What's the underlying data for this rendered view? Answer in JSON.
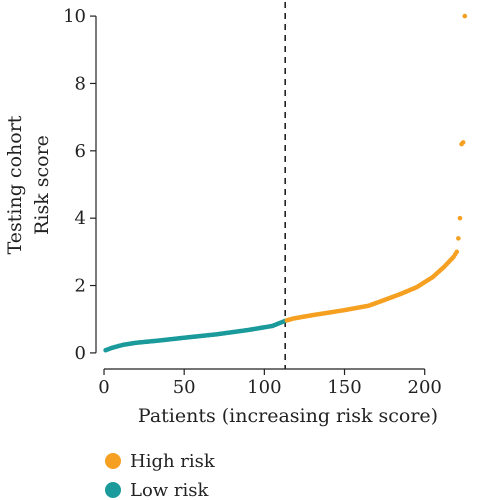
{
  "chart_data": {
    "type": "scatter",
    "ylabel_line1": "Testing cohort",
    "ylabel_line2": "Risk score",
    "xlabel": "Patients (increasing risk score)",
    "xlim": [
      -5,
      232
    ],
    "ylim": [
      -0.3,
      10.3
    ],
    "x_ticks": [
      0,
      50,
      100,
      150,
      200
    ],
    "y_ticks": [
      0,
      2,
      4,
      6,
      8,
      10
    ],
    "cutoff_x": 113,
    "n_patients": 225,
    "series": [
      {
        "name": "High risk",
        "color": "#F5A020"
      },
      {
        "name": "Low risk",
        "color": "#1A9A9A"
      }
    ],
    "curve_anchors": [
      [
        1,
        0.08
      ],
      [
        5,
        0.15
      ],
      [
        12,
        0.24
      ],
      [
        20,
        0.3
      ],
      [
        35,
        0.37
      ],
      [
        50,
        0.45
      ],
      [
        70,
        0.55
      ],
      [
        90,
        0.68
      ],
      [
        105,
        0.8
      ],
      [
        113,
        0.95
      ],
      [
        118,
        1.02
      ],
      [
        130,
        1.12
      ],
      [
        150,
        1.27
      ],
      [
        165,
        1.4
      ],
      [
        172,
        1.52
      ],
      [
        185,
        1.75
      ],
      [
        195,
        1.95
      ],
      [
        205,
        2.25
      ],
      [
        212,
        2.55
      ],
      [
        218,
        2.85
      ],
      [
        220,
        3.0
      ],
      [
        221,
        3.4
      ],
      [
        222,
        4.0
      ],
      [
        223,
        6.2
      ],
      [
        224,
        6.25
      ],
      [
        225,
        10.0
      ]
    ]
  }
}
